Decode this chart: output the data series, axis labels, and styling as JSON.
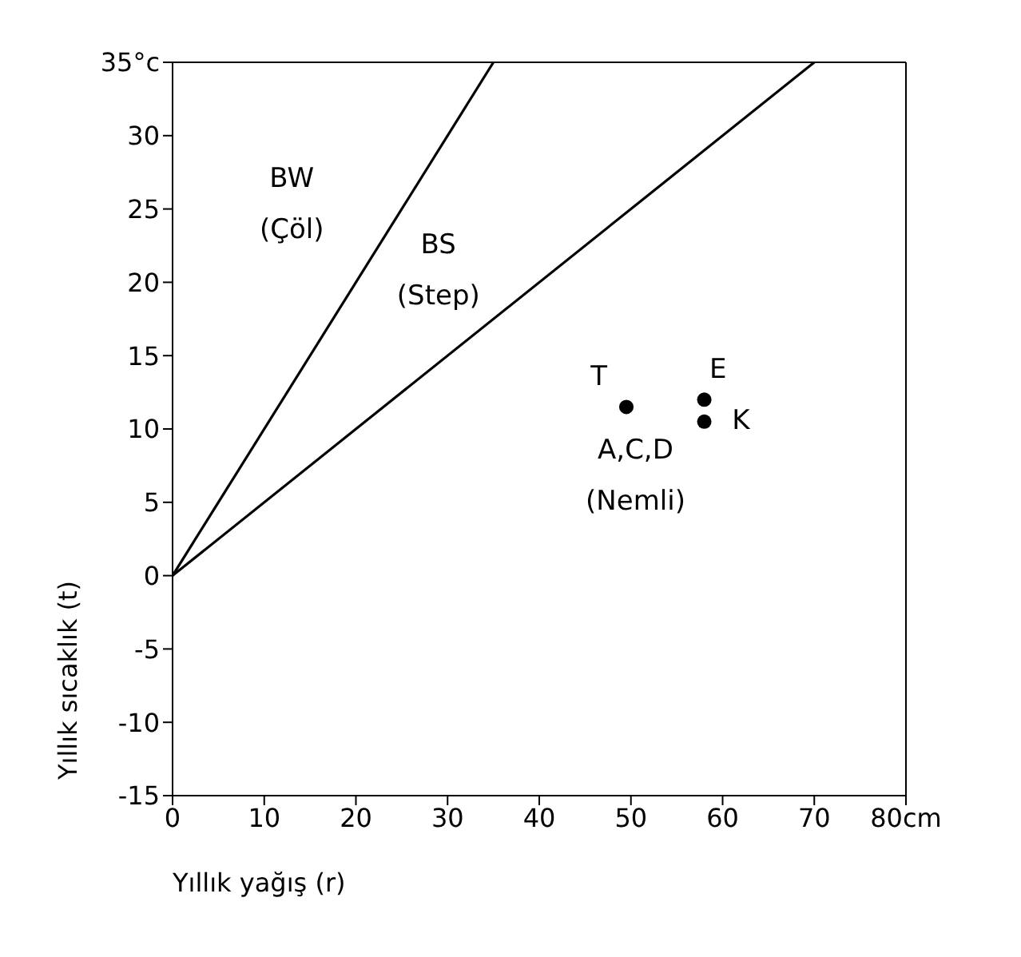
{
  "chart_data": {
    "type": "line",
    "xlabel": "Yıllık yağış (r)",
    "ylabel": "Yıllık sıcaklık (t)",
    "xlim": [
      0,
      80
    ],
    "xticks": [
      0,
      10,
      20,
      30,
      40,
      50,
      60,
      70,
      {
        "value": 80,
        "label": "80cm"
      }
    ],
    "ylim": [
      -15,
      35
    ],
    "yticks": [
      -15,
      -10,
      -5,
      0,
      5,
      10,
      15,
      20,
      25,
      30,
      {
        "value": 35,
        "label": "35°c"
      }
    ],
    "grid": false,
    "series": [
      {
        "color": "#000000",
        "x": [
          0,
          35
        ],
        "values": [
          0,
          35
        ],
        "marker": "none",
        "line_style": "solid"
      },
      {
        "color": "#000000",
        "x": [
          0,
          70
        ],
        "values": [
          0,
          35
        ],
        "marker": "none",
        "line_style": "solid"
      },
      {
        "type": "scatter",
        "color": "#000000",
        "x": [
          49.5,
          58,
          58
        ],
        "values": [
          11.5,
          12,
          10.5
        ],
        "marker": "circle"
      }
    ],
    "annotations": [
      "BW",
      "(Çöl)",
      "BS",
      "(Step)",
      "T",
      "E",
      "K",
      "A,C,D",
      "(Nemli)"
    ]
  }
}
